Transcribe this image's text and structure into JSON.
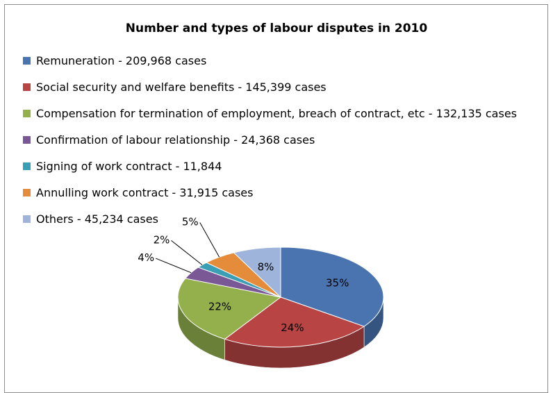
{
  "chart_data": {
    "type": "pie",
    "title": "Number and types of labour disputes in 2010",
    "legend_position": "top-left",
    "three_d": true,
    "slices": [
      {
        "legend": "Remuneration - 209,968 cases",
        "value": 209968,
        "percent_label": "35%",
        "color": "#4a74b0"
      },
      {
        "legend": "Social security and welfare benefits  - 145,399 cases",
        "value": 145399,
        "percent_label": "24%",
        "color": "#b84444"
      },
      {
        "legend": "Compensation for termination of employment, breach of contract, etc - 132,135 cases",
        "value": 132135,
        "percent_label": "22%",
        "color": "#93b04c"
      },
      {
        "legend": "Confirmation of labour relationship - 24,368 cases",
        "value": 24368,
        "percent_label": "4%",
        "color": "#7a5795"
      },
      {
        "legend": "Signing of work contract - 11,844",
        "value": 11844,
        "percent_label": "2%",
        "color": "#3a9fb4"
      },
      {
        "legend": "Annulling work contract - 31,915 cases",
        "value": 31915,
        "percent_label": "5%",
        "color": "#e58c3b"
      },
      {
        "legend": "Others - 45,234 cases",
        "value": 45234,
        "percent_label": "8%",
        "color": "#9fb4db"
      }
    ]
  }
}
